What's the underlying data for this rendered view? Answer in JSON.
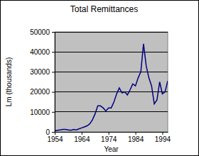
{
  "chart_data": {
    "type": "line",
    "title": "Total Remittances",
    "x_label": "Year",
    "y_label": "Lm (thousands)",
    "x": [
      1954,
      1955,
      1956,
      1957,
      1958,
      1959,
      1960,
      1961,
      1962,
      1963,
      1964,
      1965,
      1966,
      1967,
      1968,
      1969,
      1970,
      1971,
      1972,
      1973,
      1974,
      1975,
      1976,
      1977,
      1978,
      1979,
      1980,
      1981,
      1982,
      1983,
      1984,
      1985,
      1986,
      1987,
      1988,
      1989,
      1990,
      1991,
      1992,
      1993,
      1994,
      1995,
      1996
    ],
    "values": [
      500,
      800,
      1000,
      1200,
      1200,
      1000,
      800,
      1200,
      1000,
      1500,
      2000,
      2500,
      3000,
      4000,
      6000,
      9000,
      13000,
      13000,
      12000,
      10500,
      12000,
      12000,
      15000,
      19000,
      22000,
      19500,
      20000,
      18500,
      21000,
      24000,
      23000,
      27000,
      30000,
      44000,
      33000,
      27000,
      23000,
      14000,
      16000,
      25000,
      19000,
      20000,
      25500
    ],
    "color": "#000080",
    "xlim": [
      1954,
      1996
    ],
    "xticks": [
      1954,
      1964,
      1974,
      1984,
      1994
    ],
    "ylim": [
      0,
      50000
    ],
    "yticks": [
      0,
      10000,
      20000,
      30000,
      40000,
      50000
    ],
    "grid": true
  }
}
